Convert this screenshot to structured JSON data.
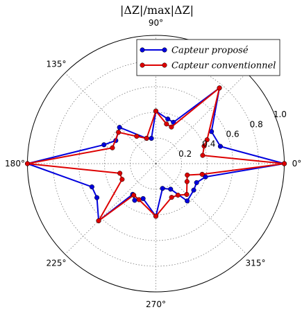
{
  "chart_data": {
    "type": "line",
    "projection": "polar",
    "title": "|ΔZ|/max|ΔZ|",
    "angle_ticks": [
      {
        "deg": 0,
        "label": "0°"
      },
      {
        "deg": 45,
        "label": ""
      },
      {
        "deg": 90,
        "label": "90°"
      },
      {
        "deg": 135,
        "label": "135°"
      },
      {
        "deg": 180,
        "label": "180°"
      },
      {
        "deg": 225,
        "label": "225°"
      },
      {
        "deg": 270,
        "label": "270°"
      },
      {
        "deg": 315,
        "label": "315°"
      }
    ],
    "radial_ticks": [
      {
        "value": 0.2,
        "label": "0.2"
      },
      {
        "value": 0.4,
        "label": "0.4"
      },
      {
        "value": 0.6,
        "label": "0.6"
      },
      {
        "value": 0.8,
        "label": "0.8"
      },
      {
        "value": 1.0,
        "label": "1.0"
      }
    ],
    "rlim": [
      0,
      1.0
    ],
    "grid": true,
    "legend_position": "top-right",
    "series": [
      {
        "name": "Capteur proposé",
        "color": "#0000dd",
        "points": [
          {
            "theta": 0,
            "r": 1.0
          },
          {
            "theta": 15,
            "r": 0.52
          },
          {
            "theta": 30,
            "r": 0.5
          },
          {
            "theta": 50,
            "r": 0.77
          },
          {
            "theta": 67,
            "r": 0.35
          },
          {
            "theta": 75,
            "r": 0.36
          },
          {
            "theta": 90,
            "r": 0.41
          },
          {
            "theta": 100,
            "r": 0.2
          },
          {
            "theta": 110,
            "r": 0.21
          },
          {
            "theta": 135,
            "r": 0.4
          },
          {
            "theta": 150,
            "r": 0.36
          },
          {
            "theta": 160,
            "r": 0.43
          },
          {
            "theta": 180,
            "r": 1.0
          },
          {
            "theta": 200,
            "r": 0.53
          },
          {
            "theta": 210,
            "r": 0.53
          },
          {
            "theta": 225,
            "r": 0.63
          },
          {
            "theta": 233,
            "r": 0.3
          },
          {
            "theta": 240,
            "r": 0.33
          },
          {
            "theta": 250,
            "r": 0.29
          },
          {
            "theta": 270,
            "r": 0.41
          },
          {
            "theta": 285,
            "r": 0.2
          },
          {
            "theta": 300,
            "r": 0.23
          },
          {
            "theta": 310,
            "r": 0.38
          },
          {
            "theta": 325,
            "r": 0.36
          },
          {
            "theta": 335,
            "r": 0.35
          },
          {
            "theta": 345,
            "r": 0.4
          },
          {
            "theta": 0,
            "r": 1.0
          }
        ]
      },
      {
        "name": "Capteur conventionnel",
        "color": "#dd0000",
        "points": [
          {
            "theta": 0,
            "r": 1.0
          },
          {
            "theta": 10,
            "r": 0.37
          },
          {
            "theta": 20,
            "r": 0.4
          },
          {
            "theta": 25,
            "r": 0.44
          },
          {
            "theta": 50,
            "r": 0.77
          },
          {
            "theta": 67,
            "r": 0.31
          },
          {
            "theta": 75,
            "r": 0.32
          },
          {
            "theta": 90,
            "r": 0.41
          },
          {
            "theta": 110,
            "r": 0.21
          },
          {
            "theta": 125,
            "r": 0.26
          },
          {
            "theta": 140,
            "r": 0.38
          },
          {
            "theta": 160,
            "r": 0.36
          },
          {
            "theta": 180,
            "r": 1.0
          },
          {
            "theta": 195,
            "r": 0.29
          },
          {
            "theta": 205,
            "r": 0.29
          },
          {
            "theta": 225,
            "r": 0.63
          },
          {
            "theta": 235,
            "r": 0.3
          },
          {
            "theta": 245,
            "r": 0.31
          },
          {
            "theta": 270,
            "r": 0.41
          },
          {
            "theta": 295,
            "r": 0.29
          },
          {
            "theta": 305,
            "r": 0.3
          },
          {
            "theta": 315,
            "r": 0.34
          },
          {
            "theta": 330,
            "r": 0.28
          },
          {
            "theta": 340,
            "r": 0.26
          },
          {
            "theta": 347,
            "r": 0.37
          },
          {
            "theta": 0,
            "r": 1.0
          }
        ]
      }
    ]
  }
}
